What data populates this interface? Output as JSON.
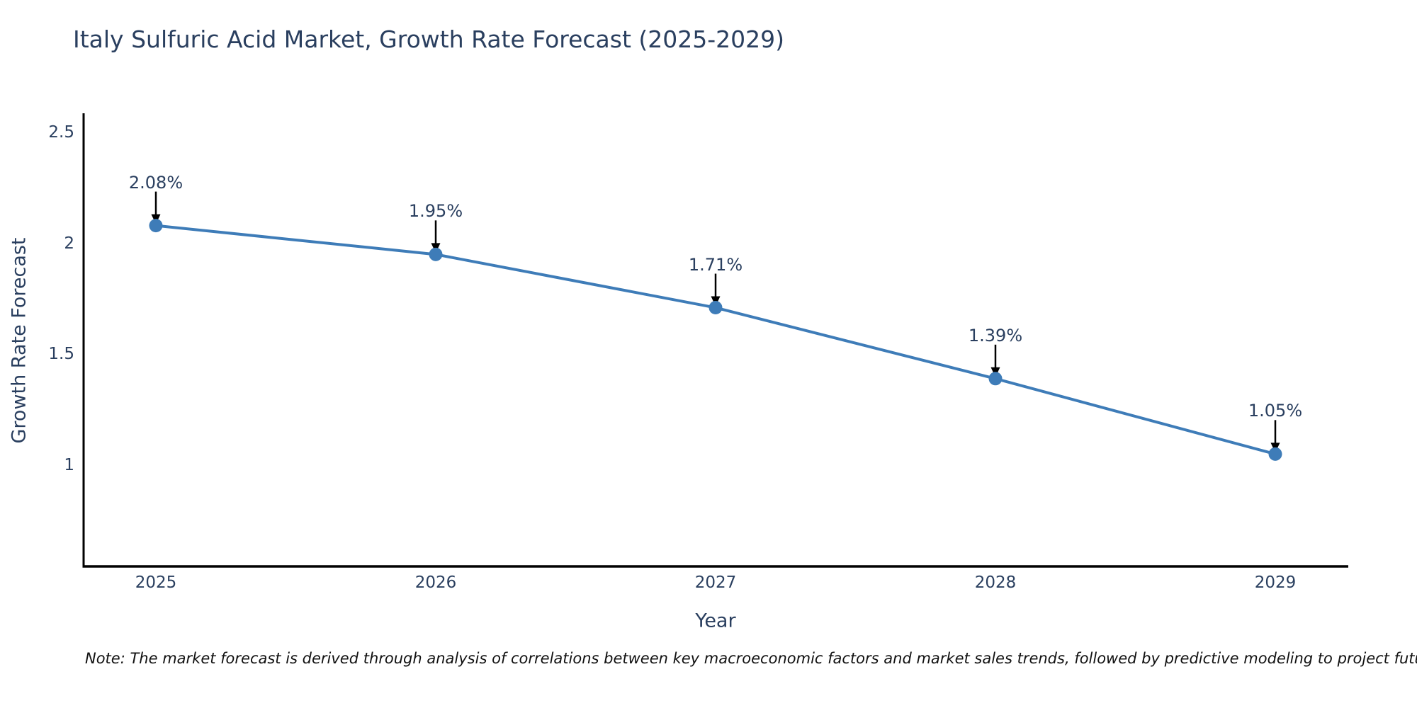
{
  "title": "Italy Sulfuric Acid Market, Growth Rate Forecast (2025-2029)",
  "note": "Note: The market forecast is derived through analysis of correlations between key macroeconomic factors and market sales trends, followed by predictive modeling to project future sales",
  "colors": {
    "series_blue": "#3E7CB8",
    "title_text": "#2a3f5f",
    "axis_line": "#010101",
    "arrow_black": "#000000"
  },
  "chart_data": {
    "type": "line",
    "title": "Italy Sulfuric Acid Market, Growth Rate Forecast (2025-2029)",
    "xlabel": "Year",
    "ylabel": "Growth Rate Forecast",
    "categories": [
      "2025",
      "2026",
      "2027",
      "2028",
      "2029"
    ],
    "x": [
      2025,
      2026,
      2027,
      2028,
      2029
    ],
    "values": [
      2.08,
      1.95,
      1.71,
      1.39,
      1.05
    ],
    "point_labels": [
      "2.08%",
      "1.95%",
      "1.71%",
      "1.39%",
      "1.05%"
    ],
    "yticks": [
      2.5,
      2.0,
      1.5,
      1.0
    ],
    "ytick_labels": [
      "2.5",
      "2",
      "1.5",
      "1"
    ],
    "ylim": [
      0.54,
      2.59
    ],
    "grid": false,
    "legend": "none",
    "line_color": "#3E7CB8",
    "marker_color": "#3E7CB8",
    "annotation_arrows": true
  }
}
